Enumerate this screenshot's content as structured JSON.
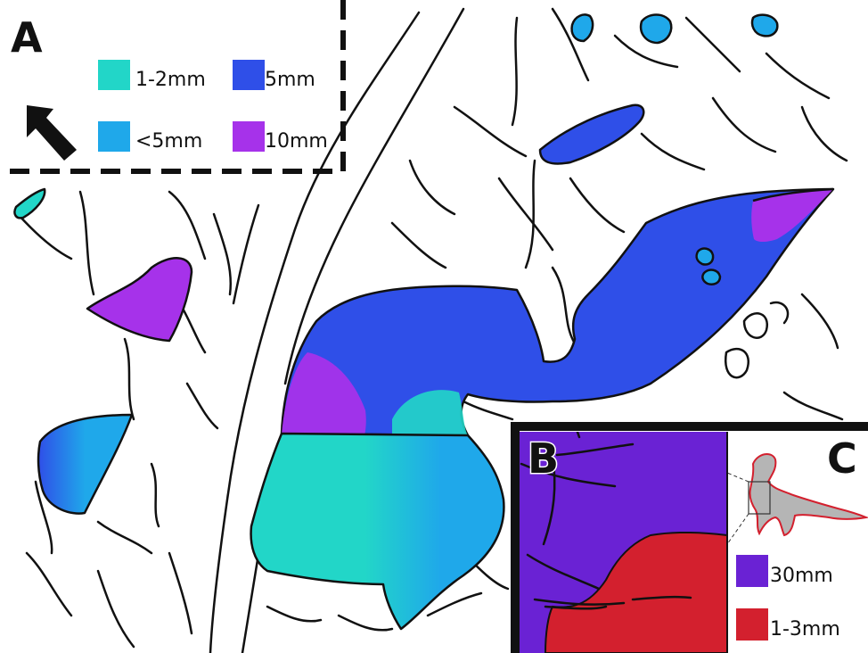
{
  "panels": {
    "a": {
      "letter": "A"
    },
    "b": {
      "letter": "B"
    },
    "c": {
      "letter": "C"
    }
  },
  "legend_a": [
    {
      "label": "1-2mm",
      "color": "#22d6c8"
    },
    {
      "label": "5mm",
      "color": "#2f4fe8"
    },
    {
      "label": "<5mm",
      "color": "#1fa8ea"
    },
    {
      "label": "10mm",
      "color": "#a632ea"
    }
  ],
  "legend_bc": [
    {
      "label": "30mm",
      "color": "#6a22d4"
    },
    {
      "label": "1-3mm",
      "color": "#d3202e"
    }
  ],
  "icons": {
    "north_arrow": "arrow-up-left-icon",
    "silhouette": "sauropod-silhouette-icon"
  }
}
